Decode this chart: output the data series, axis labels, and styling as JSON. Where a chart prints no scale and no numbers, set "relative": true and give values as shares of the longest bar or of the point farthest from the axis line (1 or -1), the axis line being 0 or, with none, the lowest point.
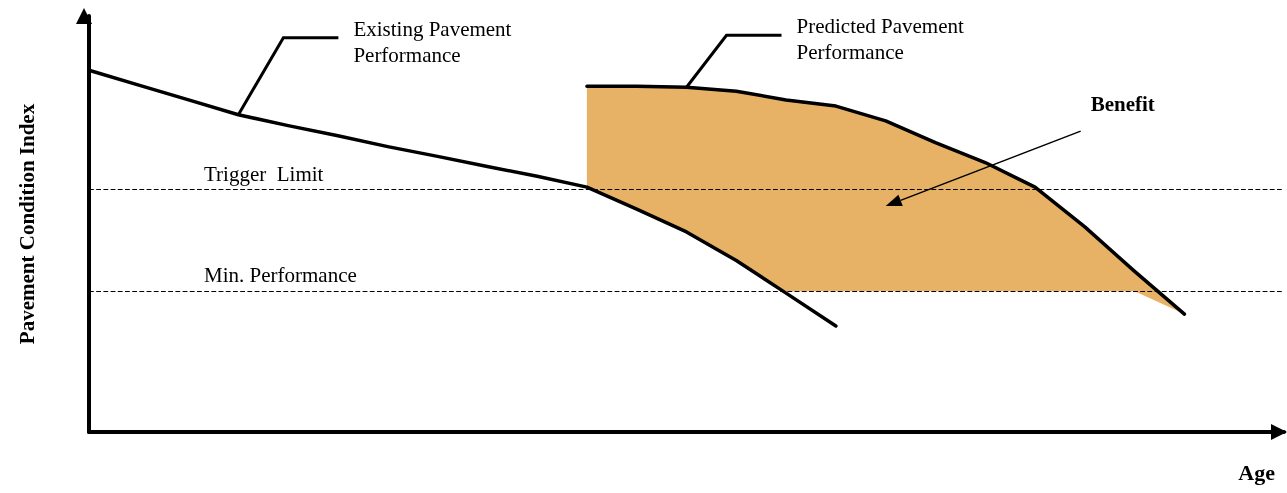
{
  "chart_data": {
    "type": "line",
    "relative": true,
    "xlabel": "Age",
    "ylabel": "Pavement Condition Index",
    "grid": false,
    "marker": "none",
    "line_style": "solid",
    "categories": [
      null,
      null,
      null,
      null,
      null,
      null,
      null,
      null,
      null,
      null,
      null,
      null,
      null,
      null,
      null,
      null,
      null,
      null,
      null,
      null,
      null,
      null,
      null,
      null,
      null
    ],
    "series": [
      {
        "name": "Existing Pavement Performance",
        "color": "#000000",
        "values": [
          1,
          0.959,
          0.918,
          0.877,
          0.847,
          0.819,
          0.789,
          0.762,
          0.734,
          0.707,
          0.677,
          0.616,
          0.553,
          0.474,
          0.384,
          0.293,
          null,
          null,
          null,
          null,
          null,
          null,
          null,
          null,
          null
        ]
      },
      {
        "name": "Predicted Pavement Performance",
        "color": "#000000",
        "values": [
          null,
          null,
          null,
          null,
          null,
          null,
          null,
          null,
          null,
          null,
          0.956,
          0.956,
          0.953,
          0.942,
          0.918,
          0.901,
          0.86,
          0.8,
          0.745,
          0.677,
          0.567,
          0.444,
          0.326,
          null,
          null
        ],
        "lower": [
          null,
          null,
          null,
          null,
          null,
          null,
          null,
          null,
          null,
          null,
          0.677,
          0.616,
          0.553,
          0.474,
          0.389,
          0.389,
          0.389,
          0.389,
          0.389,
          0.389,
          0.389,
          0.389,
          0.326,
          null,
          null
        ],
        "upper": [
          null,
          null,
          null,
          null,
          null,
          null,
          null,
          null,
          null,
          null,
          0.956,
          0.956,
          0.953,
          0.942,
          0.918,
          0.901,
          0.86,
          0.8,
          0.745,
          0.677,
          0.567,
          0.444,
          0.326,
          null,
          null
        ]
      }
    ],
    "ref_lines": [
      {
        "axis": "y",
        "value": 0.674,
        "label": "Trigger  Limit"
      },
      {
        "axis": "y",
        "value": 0.389,
        "label": "Min. Performance"
      }
    ],
    "annotations": [
      "Benefit"
    ]
  }
}
